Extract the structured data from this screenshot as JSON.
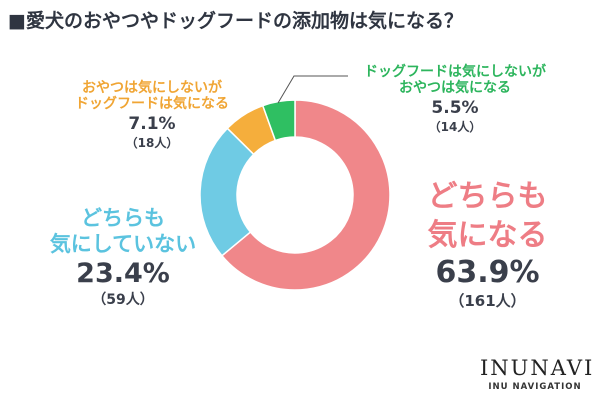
{
  "title": "■愛犬のおやつやドッグフードの添加物は気になる？",
  "chart_data": {
    "type": "pie",
    "slices": [
      {
        "label_lines": [
          "どちらも",
          "気になる"
        ],
        "percent": 63.9,
        "percent_text": "63.9%",
        "count_text": "（161人）",
        "color": "#f0878a"
      },
      {
        "label_lines": [
          "どちらも",
          "気にしていない"
        ],
        "percent": 23.4,
        "percent_text": "23.4%",
        "count_text": "（59人）",
        "color": "#6fcbe4"
      },
      {
        "label_lines": [
          "おやつは気にしないが",
          "ドッグフードは気になる"
        ],
        "percent": 7.1,
        "percent_text": "7.1%",
        "count_text": "（18人）",
        "color": "#f5ae3c"
      },
      {
        "label_lines": [
          "ドッグフードは気にしないが",
          "おやつは気になる"
        ],
        "percent": 5.5,
        "percent_text": "5.5%",
        "count_text": "（14人）",
        "color": "#2fbf62"
      }
    ]
  },
  "brand": {
    "name": "INUNAVI",
    "sub": "INU NAVIGATION"
  }
}
